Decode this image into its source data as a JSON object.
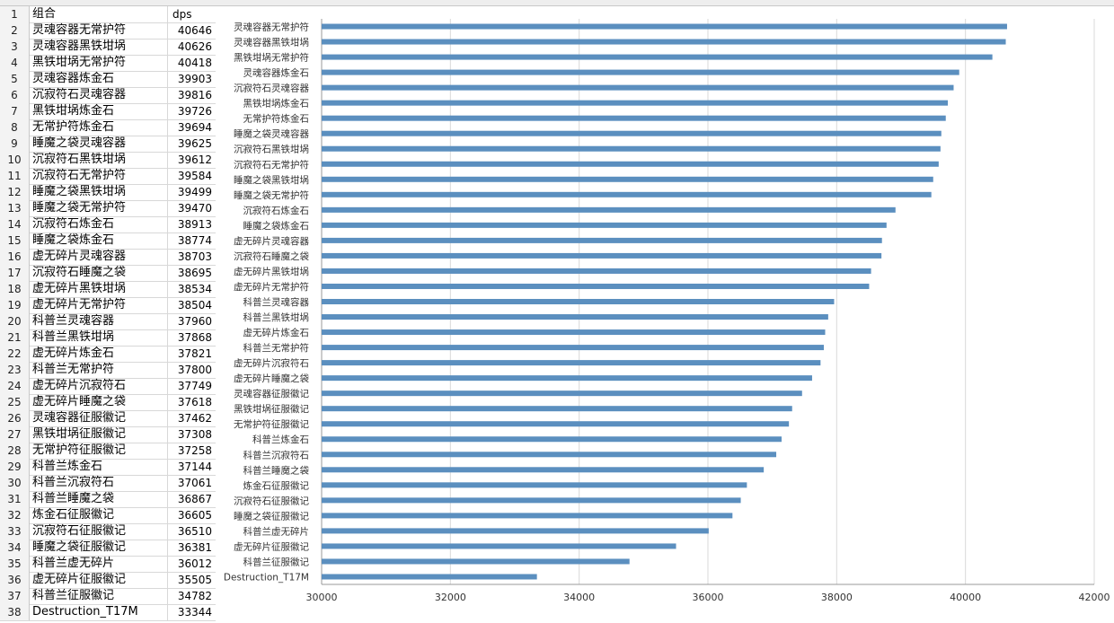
{
  "sheet": {
    "header": {
      "row": "1",
      "col_a": "组合",
      "col_b": "dps"
    },
    "rows": [
      {
        "n": "2",
        "name": "灵魂容器无常护符",
        "dps": "40646"
      },
      {
        "n": "3",
        "name": "灵魂容器黑铁坩埚",
        "dps": "40626"
      },
      {
        "n": "4",
        "name": "黑铁坩埚无常护符",
        "dps": "40418"
      },
      {
        "n": "5",
        "name": "灵魂容器炼金石",
        "dps": "39903"
      },
      {
        "n": "6",
        "name": "沉寂符石灵魂容器",
        "dps": "39816"
      },
      {
        "n": "7",
        "name": "黑铁坩埚炼金石",
        "dps": "39726"
      },
      {
        "n": "8",
        "name": "无常护符炼金石",
        "dps": "39694"
      },
      {
        "n": "9",
        "name": "睡魔之袋灵魂容器",
        "dps": "39625"
      },
      {
        "n": "10",
        "name": "沉寂符石黑铁坩埚",
        "dps": "39612"
      },
      {
        "n": "11",
        "name": "沉寂符石无常护符",
        "dps": "39584"
      },
      {
        "n": "12",
        "name": "睡魔之袋黑铁坩埚",
        "dps": "39499"
      },
      {
        "n": "13",
        "name": "睡魔之袋无常护符",
        "dps": "39470"
      },
      {
        "n": "14",
        "name": "沉寂符石炼金石",
        "dps": "38913"
      },
      {
        "n": "15",
        "name": "睡魔之袋炼金石",
        "dps": "38774"
      },
      {
        "n": "16",
        "name": "虚无碎片灵魂容器",
        "dps": "38703"
      },
      {
        "n": "17",
        "name": "沉寂符石睡魔之袋",
        "dps": "38695"
      },
      {
        "n": "18",
        "name": "虚无碎片黑铁坩埚",
        "dps": "38534"
      },
      {
        "n": "19",
        "name": "虚无碎片无常护符",
        "dps": "38504"
      },
      {
        "n": "20",
        "name": "科普兰灵魂容器",
        "dps": "37960"
      },
      {
        "n": "21",
        "name": "科普兰黑铁坩埚",
        "dps": "37868"
      },
      {
        "n": "22",
        "name": "虚无碎片炼金石",
        "dps": "37821"
      },
      {
        "n": "23",
        "name": "科普兰无常护符",
        "dps": "37800"
      },
      {
        "n": "24",
        "name": "虚无碎片沉寂符石",
        "dps": "37749"
      },
      {
        "n": "25",
        "name": "虚无碎片睡魔之袋",
        "dps": "37618"
      },
      {
        "n": "26",
        "name": "灵魂容器征服徽记",
        "dps": "37462"
      },
      {
        "n": "27",
        "name": "黑铁坩埚征服徽记",
        "dps": "37308"
      },
      {
        "n": "28",
        "name": "无常护符征服徽记",
        "dps": "37258"
      },
      {
        "n": "29",
        "name": "科普兰炼金石",
        "dps": "37144"
      },
      {
        "n": "30",
        "name": "科普兰沉寂符石",
        "dps": "37061"
      },
      {
        "n": "31",
        "name": "科普兰睡魔之袋",
        "dps": "36867"
      },
      {
        "n": "32",
        "name": "炼金石征服徽记",
        "dps": "36605"
      },
      {
        "n": "33",
        "name": "沉寂符石征服徽记",
        "dps": "36510"
      },
      {
        "n": "34",
        "name": "睡魔之袋征服徽记",
        "dps": "36381"
      },
      {
        "n": "35",
        "name": "科普兰虚无碎片",
        "dps": "36012"
      },
      {
        "n": "36",
        "name": "虚无碎片征服徽记",
        "dps": "35505"
      },
      {
        "n": "37",
        "name": "科普兰征服徽记",
        "dps": "34782"
      },
      {
        "n": "38",
        "name": "Destruction_T17M",
        "dps": "33344"
      }
    ]
  },
  "chart_data": {
    "type": "bar",
    "orientation": "horizontal",
    "title": "",
    "xlabel": "",
    "ylabel": "",
    "xlim": [
      30000,
      42000
    ],
    "x_ticks": [
      "30000",
      "32000",
      "34000",
      "36000",
      "38000",
      "40000",
      "42000"
    ],
    "grid": true,
    "bar_color": "#5b8fbf",
    "categories": [
      "灵魂容器无常护符",
      "灵魂容器黑铁坩埚",
      "黑铁坩埚无常护符",
      "灵魂容器炼金石",
      "沉寂符石灵魂容器",
      "黑铁坩埚炼金石",
      "无常护符炼金石",
      "睡魔之袋灵魂容器",
      "沉寂符石黑铁坩埚",
      "沉寂符石无常护符",
      "睡魔之袋黑铁坩埚",
      "睡魔之袋无常护符",
      "沉寂符石炼金石",
      "睡魔之袋炼金石",
      "虚无碎片灵魂容器",
      "沉寂符石睡魔之袋",
      "虚无碎片黑铁坩埚",
      "虚无碎片无常护符",
      "科普兰灵魂容器",
      "科普兰黑铁坩埚",
      "虚无碎片炼金石",
      "科普兰无常护符",
      "虚无碎片沉寂符石",
      "虚无碎片睡魔之袋",
      "灵魂容器征服徽记",
      "黑铁坩埚征服徽记",
      "无常护符征服徽记",
      "科普兰炼金石",
      "科普兰沉寂符石",
      "科普兰睡魔之袋",
      "炼金石征服徽记",
      "沉寂符石征服徽记",
      "睡魔之袋征服徽记",
      "科普兰虚无碎片",
      "虚无碎片征服徽记",
      "科普兰征服徽记",
      "Destruction_T17M"
    ],
    "values": [
      40646,
      40626,
      40418,
      39903,
      39816,
      39726,
      39694,
      39625,
      39612,
      39584,
      39499,
      39470,
      38913,
      38774,
      38703,
      38695,
      38534,
      38504,
      37960,
      37868,
      37821,
      37800,
      37749,
      37618,
      37462,
      37308,
      37258,
      37144,
      37061,
      36867,
      36605,
      36510,
      36381,
      36012,
      35505,
      34782,
      33344
    ]
  }
}
